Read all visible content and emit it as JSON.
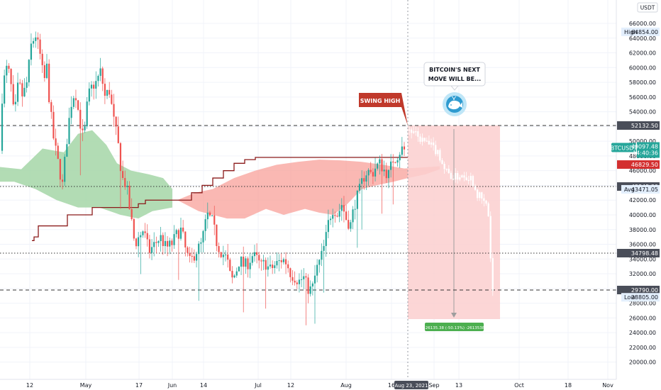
{
  "chart_data": {
    "type": "candlestick",
    "symbol": "BTCUSDT",
    "currency": "USDT",
    "x_ticks": [
      "12",
      "May",
      "17",
      "Jun",
      "14",
      "Jul",
      "12",
      "Aug",
      "16",
      "Aug 23, 2021",
      "Sep",
      "13",
      "Oct",
      "18",
      "Nov"
    ],
    "current_date_label": "Aug 23, 2021",
    "y_ticks": [
      "20000.00",
      "22000.00",
      "24000.00",
      "26000.00",
      "28000.00",
      "30000.00",
      "32000.00",
      "34000.00",
      "36000.00",
      "38000.00",
      "40000.00",
      "42000.00",
      "44000.00",
      "46000.00",
      "48000.00",
      "50000.00",
      "52000.00",
      "54000.00",
      "56000.00",
      "58000.00",
      "60000.00",
      "62000.00",
      "64000.00",
      "66000.00"
    ],
    "ylim": [
      18500,
      68200
    ],
    "price_levels": [
      {
        "label": "",
        "value": "52132.50",
        "price": 52132.5,
        "style": "dashed"
      },
      {
        "label": "",
        "value": "43845.30",
        "price": 43845.3,
        "style": "dotted"
      },
      {
        "label": "",
        "value": "34798.48",
        "price": 34798.48,
        "style": "dotted"
      },
      {
        "label": "",
        "value": "29790.00",
        "price": 29790.0,
        "style": "dashed"
      }
    ],
    "price_tags": [
      {
        "label": "High",
        "value": "64854.00",
        "price": 64854.0
      },
      {
        "label": "BTCUSDT",
        "value": "49097.48",
        "sub": "14:40:36",
        "price": 49097.48
      },
      {
        "label": "",
        "value": "46829.50",
        "price": 46829.5
      },
      {
        "label": "Avg",
        "value": "43471.05",
        "price": 43471.05
      },
      {
        "label": "Low",
        "value": "28805.00",
        "price": 28805.0
      }
    ],
    "annotations": {
      "swing_high": "SWING HIGH",
      "bubble_line1": "BITCOIN'S NEXT",
      "bubble_line2": "MOVE WILL BE...",
      "measure": "-26135.38 (-50.13%) -2613538"
    },
    "projection": {
      "from_price": 52132.5,
      "to_price": 26000.0
    }
  },
  "colors": {
    "bull": "#26a69a",
    "bear": "#ef5350",
    "cloud_bull": "#a5d6a7",
    "cloud_bear": "#f8a09a",
    "baseline": "#8b1a1a",
    "measure_fill": "#fccfcf",
    "tag_green": "#26a69a",
    "tag_red": "#d32f2f",
    "tag_gray": "#4a4e59"
  },
  "icons": {
    "whale": "whale-icon"
  }
}
